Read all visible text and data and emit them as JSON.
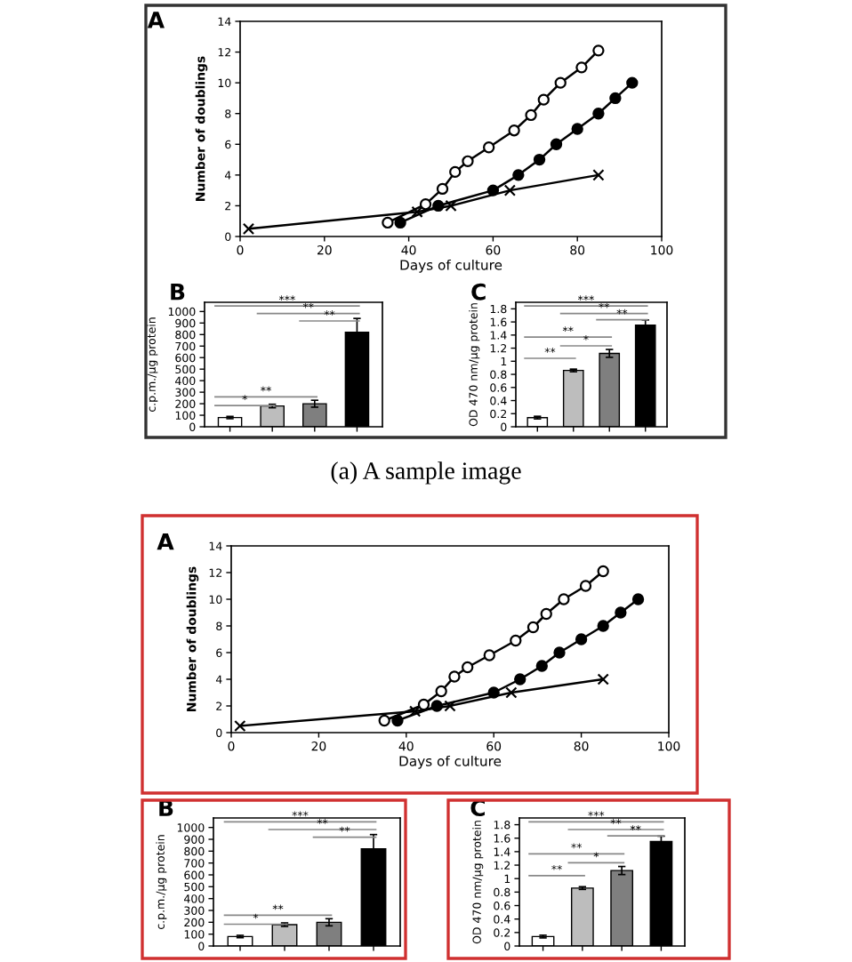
{
  "chart_data": [
    {
      "type": "line",
      "title": "A",
      "xlabel": "Days of culture",
      "ylabel": "Number of doublings",
      "xlim": [
        0,
        100
      ],
      "xticks": [
        0,
        20,
        40,
        60,
        80,
        100
      ],
      "ylim": [
        0,
        14
      ],
      "yticks": [
        0,
        2,
        4,
        6,
        8,
        10,
        12,
        14
      ],
      "grid": false,
      "legend": false,
      "annotations": [
        "(a) A sample image"
      ],
      "series": [
        {
          "color": "#ffffff",
          "marker": "circle",
          "x": [
            35,
            44,
            48,
            51,
            54,
            59,
            65,
            69,
            72,
            76,
            81,
            85
          ],
          "values": [
            0.9,
            2.1,
            3.1,
            4.2,
            4.9,
            5.8,
            6.9,
            7.9,
            8.9,
            10,
            11,
            12.1
          ]
        },
        {
          "color": "#000000",
          "marker": "circle",
          "x": [
            38,
            47,
            60,
            66,
            71,
            75,
            80,
            85,
            89,
            93
          ],
          "values": [
            0.9,
            2,
            3,
            4,
            5,
            6,
            7,
            8,
            9,
            10
          ]
        },
        {
          "color": "#000000",
          "marker": "cross",
          "x": [
            2,
            42,
            50,
            64,
            85
          ],
          "values": [
            0.5,
            1.6,
            2,
            3,
            4
          ]
        }
      ]
    },
    {
      "type": "bar",
      "title": "B",
      "ylabel": "c.p.m./µg protein",
      "categories": [
        null,
        null,
        null,
        null
      ],
      "ylim": [
        0,
        1080
      ],
      "yticks": [
        0,
        100,
        200,
        300,
        400,
        500,
        600,
        700,
        800,
        900,
        1000
      ],
      "grid": false,
      "values": [
        80,
        180,
        200,
        820
      ],
      "errors": [
        10,
        15,
        30,
        120
      ],
      "colors": [
        "#ffffff",
        "#bdbdbd",
        "#7f7f7f",
        "#000000"
      ],
      "annotations": [
        "*",
        "**",
        "***",
        "**",
        "**"
      ]
    },
    {
      "type": "bar",
      "title": "C",
      "ylabel": "OD 470 nm/µg protein",
      "categories": [
        null,
        null,
        null,
        null
      ],
      "ylim": [
        0,
        1.9
      ],
      "yticks": [
        0,
        0.2,
        0.4,
        0.6,
        0.8,
        1,
        1.2,
        1.4,
        1.6,
        1.8
      ],
      "grid": false,
      "values": [
        0.14,
        0.86,
        1.12,
        1.55
      ],
      "errors": [
        0.02,
        0.02,
        0.06,
        0.08
      ],
      "colors": [
        "#ffffff",
        "#bdbdbd",
        "#7f7f7f",
        "#000000"
      ],
      "annotations": [
        "**",
        "**",
        "*",
        "***",
        "**",
        "**"
      ]
    },
    {
      "type": "line",
      "title": "A",
      "xlabel": "Days of culture",
      "ylabel": "Number of doublings",
      "xlim": [
        0,
        100
      ],
      "xticks": [
        0,
        20,
        40,
        60,
        80,
        100
      ],
      "ylim": [
        0,
        14
      ],
      "yticks": [
        0,
        2,
        4,
        6,
        8,
        10,
        12,
        14
      ],
      "grid": false,
      "legend": false,
      "series": [
        {
          "color": "#ffffff",
          "marker": "circle",
          "x": [
            35,
            44,
            48,
            51,
            54,
            59,
            65,
            69,
            72,
            76,
            81,
            85
          ],
          "values": [
            0.9,
            2.1,
            3.1,
            4.2,
            4.9,
            5.8,
            6.9,
            7.9,
            8.9,
            10,
            11,
            12.1
          ]
        },
        {
          "color": "#000000",
          "marker": "circle",
          "x": [
            38,
            47,
            60,
            66,
            71,
            75,
            80,
            85,
            89,
            93
          ],
          "values": [
            0.9,
            2,
            3,
            4,
            5,
            6,
            7,
            8,
            9,
            10
          ]
        },
        {
          "color": "#000000",
          "marker": "cross",
          "x": [
            2,
            42,
            50,
            64,
            85
          ],
          "values": [
            0.5,
            1.6,
            2,
            3,
            4
          ]
        }
      ]
    },
    {
      "type": "bar",
      "title": "B",
      "ylabel": "c.p.m./µg protein",
      "categories": [
        null,
        null,
        null,
        null
      ],
      "ylim": [
        0,
        1080
      ],
      "yticks": [
        0,
        100,
        200,
        300,
        400,
        500,
        600,
        700,
        800,
        900,
        1000
      ],
      "grid": false,
      "values": [
        80,
        180,
        200,
        820
      ],
      "errors": [
        10,
        15,
        30,
        120
      ],
      "colors": [
        "#ffffff",
        "#bdbdbd",
        "#7f7f7f",
        "#000000"
      ],
      "annotations": [
        "*",
        "**",
        "***",
        "**",
        "**"
      ]
    },
    {
      "type": "bar",
      "title": "C",
      "ylabel": "OD 470 nm/µg protein",
      "categories": [
        null,
        null,
        null,
        null
      ],
      "ylim": [
        0,
        1.9
      ],
      "yticks": [
        0,
        0.2,
        0.4,
        0.6,
        0.8,
        1,
        1.2,
        1.4,
        1.6,
        1.8
      ],
      "grid": false,
      "values": [
        0.14,
        0.86,
        1.12,
        1.55
      ],
      "errors": [
        0.02,
        0.02,
        0.06,
        0.08
      ],
      "colors": [
        "#ffffff",
        "#bdbdbd",
        "#7f7f7f",
        "#000000"
      ],
      "annotations": [
        "**",
        "**",
        "*",
        "***",
        "**",
        "**"
      ]
    }
  ]
}
